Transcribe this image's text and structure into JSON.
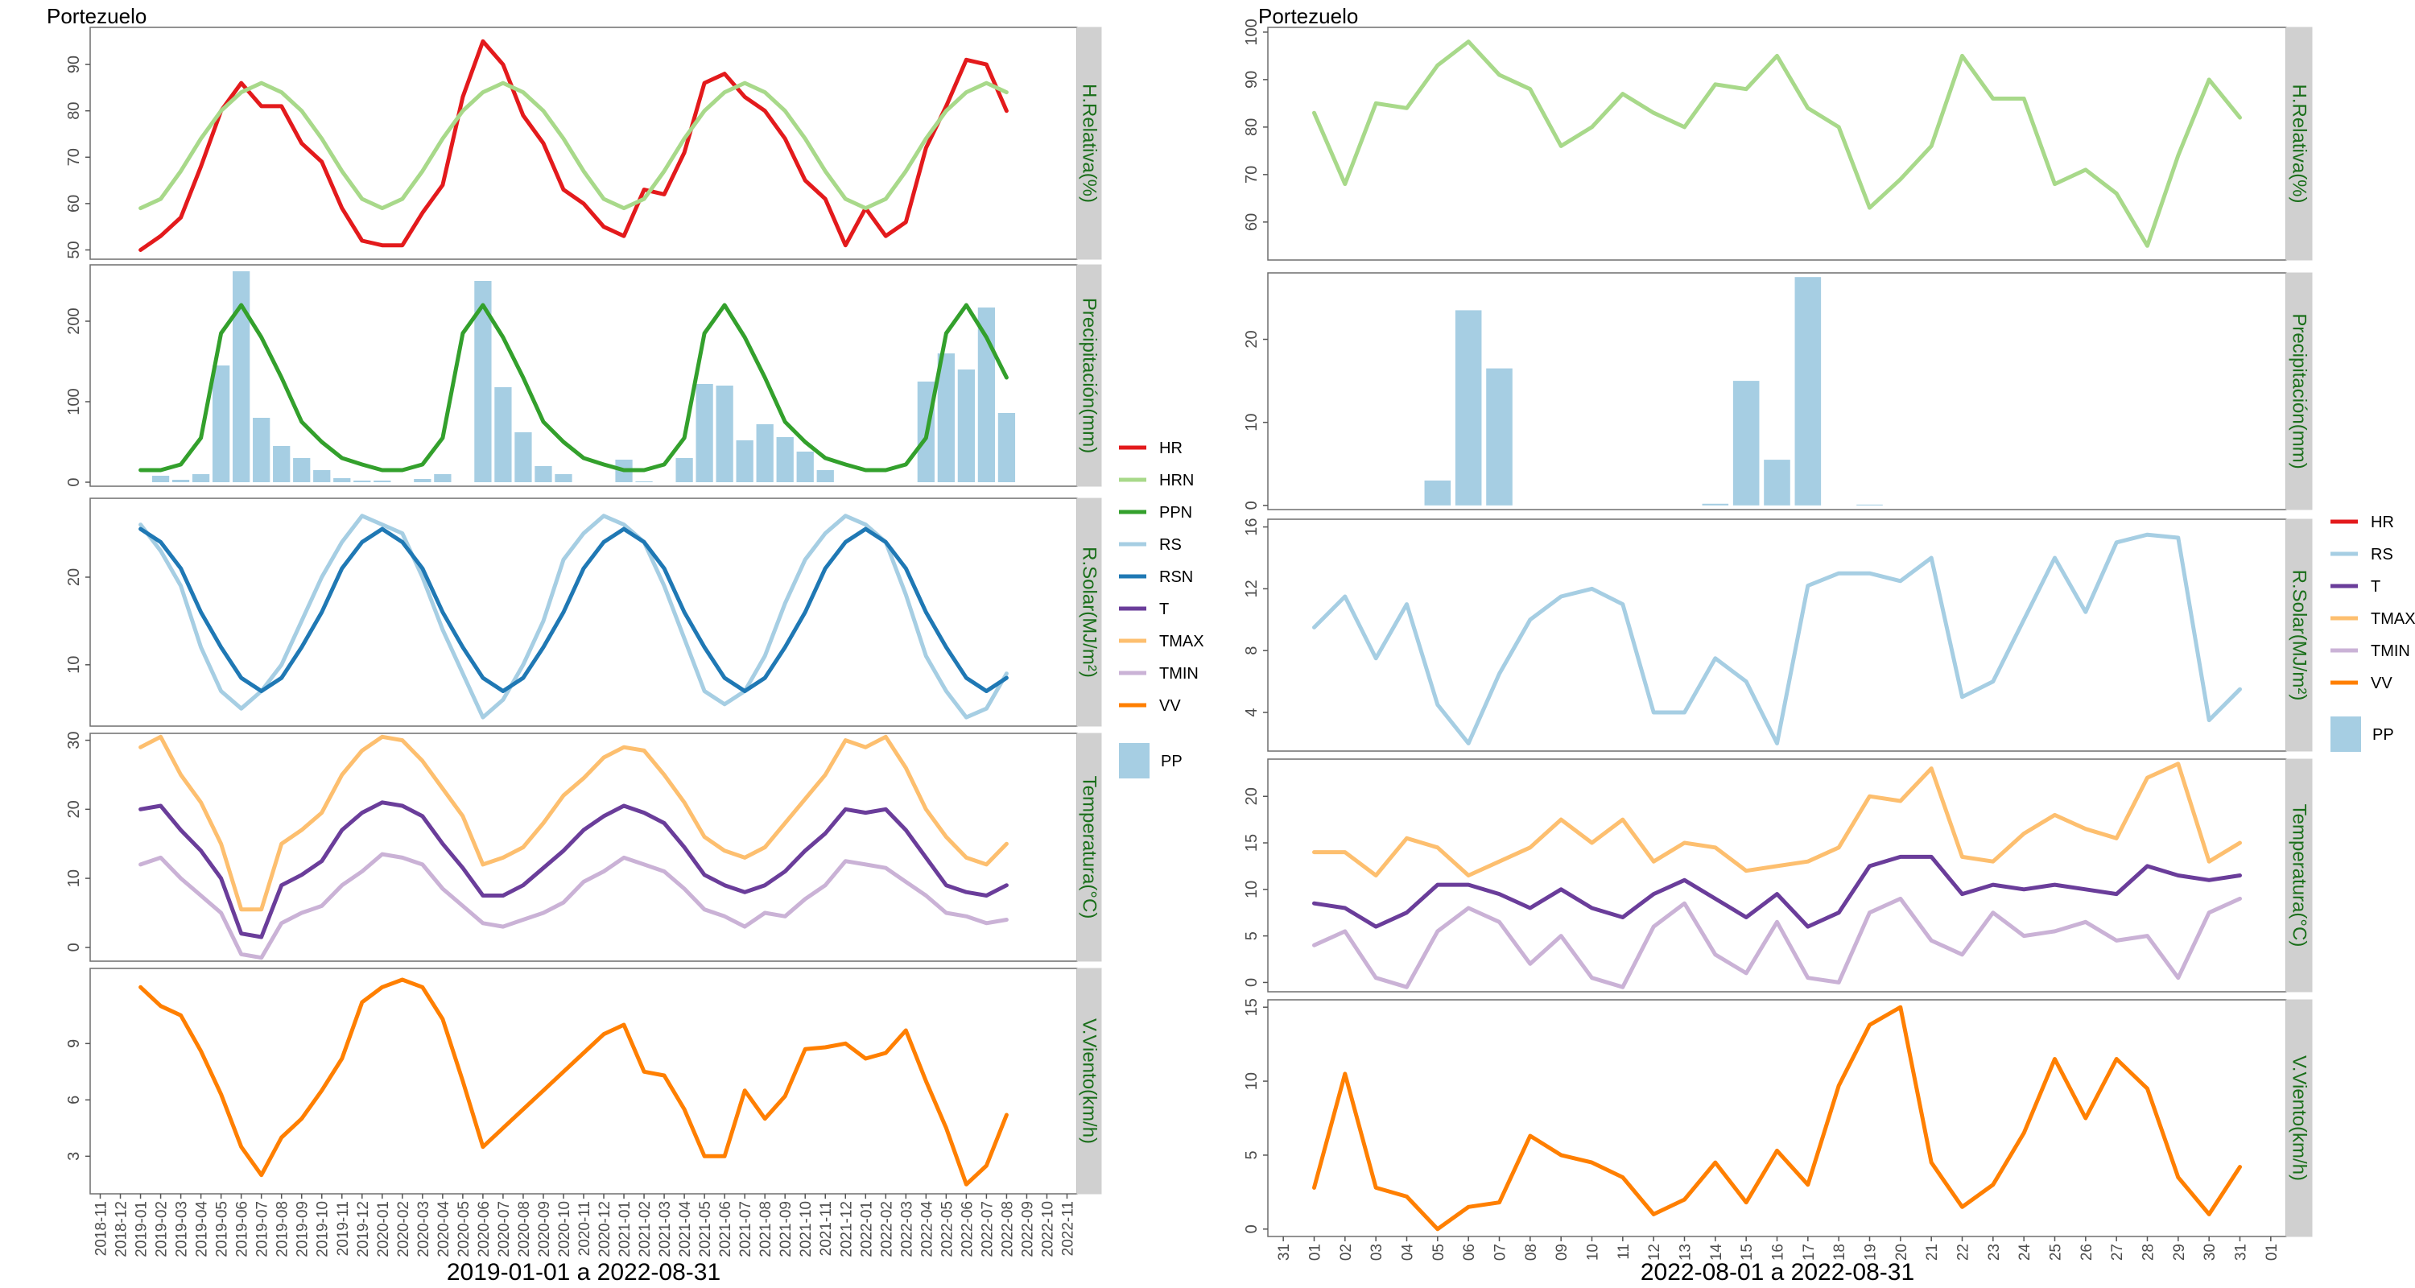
{
  "colors": {
    "HR": "#e31a1c",
    "HRN": "#a8d98a",
    "PPN": "#33a02c",
    "RS": "#a6cee3",
    "RSN": "#1f78b4",
    "T": "#6a3d9a",
    "TMAX": "#fdbf6f",
    "TMIN": "#cab2d6",
    "VV": "#ff7f00",
    "PP": "#a6cee3"
  },
  "chart_data": [
    {
      "type": "line",
      "station": "Portezuelo",
      "xlabel": "2019-01-01 a 2022-08-31",
      "x_ticks": [
        "2018-11",
        "2018-12",
        "2019-01",
        "2019-02",
        "2019-03",
        "2019-04",
        "2019-05",
        "2019-06",
        "2019-07",
        "2019-08",
        "2019-09",
        "2019-10",
        "2019-11",
        "2019-12",
        "2020-01",
        "2020-02",
        "2020-03",
        "2020-04",
        "2020-05",
        "2020-06",
        "2020-07",
        "2020-08",
        "2020-09",
        "2020-10",
        "2020-11",
        "2020-12",
        "2021-01",
        "2021-02",
        "2021-03",
        "2021-04",
        "2021-05",
        "2021-06",
        "2021-07",
        "2021-08",
        "2021-09",
        "2021-10",
        "2021-11",
        "2021-12",
        "2022-01",
        "2022-02",
        "2022-03",
        "2022-04",
        "2022-05",
        "2022-06",
        "2022-07",
        "2022-08",
        "2022-09",
        "2022-10",
        "2022-11"
      ],
      "x_start_index": 2,
      "legend": [
        "HR",
        "HRN",
        "PPN",
        "RS",
        "RSN",
        "T",
        "TMAX",
        "TMIN",
        "VV"
      ],
      "legend_bar": [
        "PP"
      ],
      "panels": [
        {
          "strip": "H.Relativa(%)",
          "ylim": [
            48,
            98
          ],
          "yticks": [
            50,
            60,
            70,
            80,
            90
          ],
          "series": [
            {
              "name": "HR",
              "values": [
                50,
                53,
                57,
                68,
                80,
                86,
                81,
                81,
                73,
                69,
                59,
                52,
                51,
                51,
                58,
                64,
                83,
                95,
                90,
                79,
                73,
                63,
                60,
                55,
                53,
                63,
                62,
                71,
                86,
                88,
                83,
                80,
                74,
                65,
                61,
                51,
                59,
                53,
                56,
                72,
                81,
                91,
                90,
                80
              ]
            },
            {
              "name": "HRN",
              "values": [
                59,
                61,
                67,
                74,
                80,
                84,
                86,
                84,
                80,
                74,
                67,
                61,
                59,
                61,
                67,
                74,
                80,
                84,
                86,
                84,
                80,
                74,
                67,
                61,
                59,
                61,
                67,
                74,
                80,
                84,
                86,
                84,
                80,
                74,
                67,
                61,
                59,
                61,
                67,
                74,
                80,
                84,
                86,
                84
              ]
            }
          ]
        },
        {
          "strip": "Precipitación(mm)",
          "ylim": [
            -5,
            270
          ],
          "yticks": [
            0,
            100,
            200
          ],
          "bars": {
            "name": "PP",
            "values": [
              0,
              8,
              3,
              10,
              145,
              262,
              80,
              45,
              30,
              15,
              5,
              2,
              2,
              0,
              4,
              10,
              0,
              250,
              118,
              62,
              20,
              10,
              0,
              0,
              28,
              1,
              0,
              30,
              122,
              120,
              52,
              72,
              56,
              38,
              15,
              0,
              0,
              0,
              0,
              125,
              160,
              140,
              217,
              86
            ]
          },
          "series": [
            {
              "name": "PPN",
              "values": [
                15,
                15,
                22,
                55,
                185,
                220,
                180,
                130,
                75,
                50,
                30,
                22,
                15,
                15,
                22,
                55,
                185,
                220,
                180,
                130,
                75,
                50,
                30,
                22,
                15,
                15,
                22,
                55,
                185,
                220,
                180,
                130,
                75,
                50,
                30,
                22,
                15,
                15,
                22,
                55,
                185,
                220,
                180,
                130
              ]
            }
          ]
        },
        {
          "strip": "R.Solar(MJ/m²)",
          "ylim": [
            3,
            29
          ],
          "yticks": [
            10,
            20
          ],
          "series": [
            {
              "name": "RS",
              "values": [
                26,
                23,
                19,
                12,
                7,
                5,
                7,
                10,
                15,
                20,
                24,
                27,
                26,
                25,
                20,
                14,
                9,
                4,
                6,
                10,
                15,
                22,
                25,
                27,
                26,
                24,
                19,
                13,
                7,
                5.5,
                7,
                11,
                17,
                22,
                25,
                27,
                26,
                24,
                18,
                11,
                7,
                4,
                5,
                9
              ]
            },
            {
              "name": "RSN",
              "values": [
                25.5,
                24,
                21,
                16,
                12,
                8.5,
                7,
                8.5,
                12,
                16,
                21,
                24,
                25.5,
                24,
                21,
                16,
                12,
                8.5,
                7,
                8.5,
                12,
                16,
                21,
                24,
                25.5,
                24,
                21,
                16,
                12,
                8.5,
                7,
                8.5,
                12,
                16,
                21,
                24,
                25.5,
                24,
                21,
                16,
                12,
                8.5,
                7,
                8.5
              ]
            }
          ]
        },
        {
          "strip": "Temperatura(°C)",
          "ylim": [
            -2,
            31
          ],
          "yticks": [
            0,
            10,
            20,
            30
          ],
          "series": [
            {
              "name": "TMAX",
              "values": [
                29,
                30.5,
                25,
                21,
                15,
                5.5,
                5.5,
                15,
                17,
                19.5,
                25,
                28.5,
                30.5,
                30,
                27,
                23,
                19,
                12,
                13,
                14.5,
                18,
                22,
                24.5,
                27.5,
                29,
                28.5,
                25,
                21,
                16,
                14,
                13,
                14.5,
                18,
                21.5,
                25,
                30,
                29,
                30.5,
                26,
                20,
                16,
                13,
                12,
                15
              ]
            },
            {
              "name": "T",
              "values": [
                20,
                20.5,
                17,
                14,
                10,
                2,
                1.5,
                9,
                10.5,
                12.5,
                17,
                19.5,
                21,
                20.5,
                19,
                15,
                11.5,
                7.5,
                7.5,
                9,
                11.5,
                14,
                17,
                19,
                20.5,
                19.5,
                18,
                14.5,
                10.5,
                9,
                8,
                9,
                11,
                14,
                16.5,
                20,
                19.5,
                20,
                17,
                13,
                9,
                8,
                7.5,
                9
              ]
            },
            {
              "name": "TMIN",
              "values": [
                12,
                13,
                10,
                7.5,
                5,
                -1,
                -1.5,
                3.5,
                5,
                6,
                9,
                11,
                13.5,
                13,
                12,
                8.5,
                6,
                3.5,
                3,
                4,
                5,
                6.5,
                9.5,
                11,
                13,
                12,
                11,
                8.5,
                5.5,
                4.5,
                3,
                5,
                4.5,
                7,
                9,
                12.5,
                12,
                11.5,
                9.5,
                7.5,
                5,
                4.5,
                3.5,
                4
              ]
            }
          ]
        },
        {
          "strip": "V.Viento(km/h)",
          "ylim": [
            1,
            13
          ],
          "yticks": [
            3,
            6,
            9
          ],
          "series": [
            {
              "name": "VV",
              "values": [
                12,
                11,
                10.5,
                8.6,
                6.3,
                3.5,
                2,
                4,
                5,
                6.5,
                8.2,
                11.2,
                12,
                12.4,
                12,
                10.3,
                7,
                3.5,
                4.5,
                5.5,
                6.5,
                7.5,
                8.5,
                9.5,
                10,
                7.5,
                7.3,
                5.5,
                3,
                3,
                6.5,
                5,
                6.2,
                8.7,
                8.8,
                9,
                8.2,
                8.5,
                9.7,
                7,
                4.5,
                1.5,
                2.5,
                5.2
              ]
            }
          ]
        }
      ]
    },
    {
      "type": "line",
      "station": "Portezuelo",
      "xlabel": "2022-08-01 a 2022-08-31",
      "x_ticks": [
        "31",
        "01",
        "02",
        "03",
        "04",
        "05",
        "06",
        "07",
        "08",
        "09",
        "10",
        "11",
        "12",
        "13",
        "14",
        "15",
        "16",
        "17",
        "18",
        "19",
        "20",
        "21",
        "22",
        "23",
        "24",
        "25",
        "26",
        "27",
        "28",
        "29",
        "30",
        "31",
        "01"
      ],
      "x_start_index": 1,
      "legend": [
        "HR",
        "RS",
        "T",
        "TMAX",
        "TMIN",
        "VV"
      ],
      "legend_bar": [
        "PP"
      ],
      "panels": [
        {
          "strip": "H.Relativa(%)",
          "ylim": [
            52,
            101
          ],
          "yticks": [
            60,
            70,
            80,
            90,
            100
          ],
          "series": [
            {
              "name": "HRN",
              "values": [
                83,
                68,
                85,
                84,
                93,
                98,
                91,
                88,
                76,
                80,
                87,
                83,
                80,
                89,
                88,
                95,
                84,
                80,
                63,
                69,
                76,
                95,
                86,
                86,
                68,
                71,
                66,
                55,
                74,
                90,
                82
              ]
            }
          ]
        },
        {
          "strip": "Precipitación(mm)",
          "ylim": [
            -0.5,
            28
          ],
          "yticks": [
            0,
            10,
            20
          ],
          "bars": {
            "name": "PP",
            "values": [
              0,
              0,
              0,
              0,
              3,
              23.5,
              16.5,
              0,
              0,
              0,
              0,
              0,
              0,
              0.2,
              15,
              5.5,
              27.5,
              0,
              0.1,
              0,
              0,
              0,
              0,
              0,
              0,
              0,
              0,
              0,
              0,
              0,
              0
            ]
          },
          "series": []
        },
        {
          "strip": "R.Solar(MJ/m²)",
          "ylim": [
            1.5,
            16.5
          ],
          "yticks": [
            4,
            8,
            12,
            16
          ],
          "series": [
            {
              "name": "RS",
              "values": [
                9.5,
                11.5,
                7.5,
                11,
                4.5,
                2,
                6.5,
                10,
                11.5,
                12,
                11,
                4,
                4,
                7.5,
                6,
                2,
                12.2,
                13,
                13,
                12.5,
                14,
                5,
                6,
                10,
                14,
                10.5,
                15,
                15.5,
                15.3,
                3.5,
                5.5
              ]
            }
          ]
        },
        {
          "strip": "Temperatura(°C)",
          "ylim": [
            -1,
            24
          ],
          "yticks": [
            0,
            5,
            10,
            15,
            20
          ],
          "series": [
            {
              "name": "TMAX",
              "values": [
                14,
                14,
                11.5,
                15.5,
                14.5,
                11.5,
                13,
                14.5,
                17.5,
                15,
                17.5,
                13,
                15,
                14.5,
                12,
                12.5,
                13,
                14.5,
                20,
                19.5,
                23,
                13.5,
                13,
                16,
                18,
                16.5,
                15.5,
                22,
                23.5,
                13,
                15
              ]
            },
            {
              "name": "T",
              "values": [
                8.5,
                8,
                6,
                7.5,
                10.5,
                10.5,
                9.5,
                8,
                10,
                8,
                7,
                9.5,
                11,
                9,
                7,
                9.5,
                6,
                7.5,
                12.5,
                13.5,
                13.5,
                9.5,
                10.5,
                10,
                10.5,
                10,
                9.5,
                12.5,
                11.5,
                11,
                11.5
              ]
            },
            {
              "name": "TMIN",
              "values": [
                4,
                5.5,
                0.5,
                -0.5,
                5.5,
                8,
                6.5,
                2,
                5,
                0.5,
                -0.5,
                6,
                8.5,
                3,
                1,
                6.5,
                0.5,
                0,
                7.5,
                9,
                4.5,
                3,
                7.5,
                5,
                5.5,
                6.5,
                4.5,
                5,
                0.5,
                7.5,
                9
              ]
            }
          ]
        },
        {
          "strip": "V.Viento(km/h)",
          "ylim": [
            -0.5,
            15.5
          ],
          "yticks": [
            0,
            5,
            10,
            15
          ],
          "series": [
            {
              "name": "VV",
              "values": [
                2.8,
                10.5,
                2.8,
                2.2,
                0,
                1.5,
                1.8,
                6.3,
                5,
                4.5,
                3.5,
                1,
                2,
                4.5,
                1.8,
                5.3,
                3,
                9.7,
                13.8,
                15,
                4.5,
                1.5,
                3,
                6.5,
                11.5,
                7.5,
                11.5,
                9.5,
                3.5,
                1,
                4.2
              ]
            }
          ]
        }
      ]
    }
  ]
}
